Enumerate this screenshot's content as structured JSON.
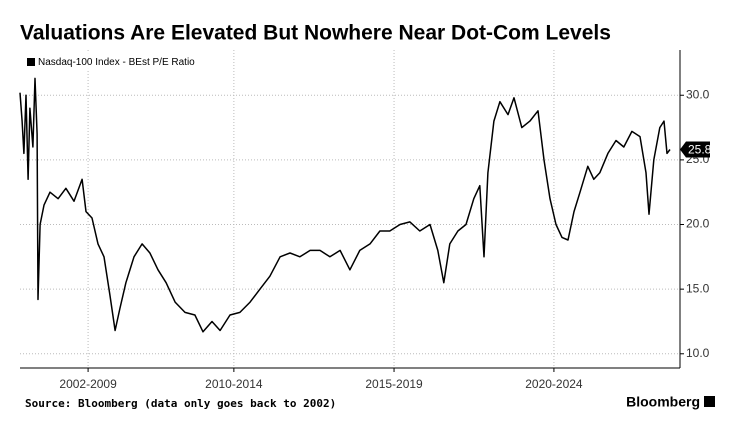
{
  "chart_data": {
    "type": "line",
    "title": "Valuations Are Elevated But Nowhere Near Dot-Com Levels",
    "source": "Source: Bloomberg (data only goes back to 2002)",
    "brand": "Bloomberg",
    "legend": "top-left",
    "grid": true,
    "xlim": [
      2004.0,
      2025.67
    ],
    "ylim": [
      8.9,
      33.5
    ],
    "xticks": [
      {
        "value": 2006.27,
        "label": "2002-2009"
      },
      {
        "value": 2011.13,
        "label": "2010-2014"
      },
      {
        "value": 2016.47,
        "label": "2015-2019"
      },
      {
        "value": 2021.8,
        "label": "2020-2024"
      }
    ],
    "yticks": [
      {
        "value": 10,
        "label": "10.0"
      },
      {
        "value": 15,
        "label": "15.0"
      },
      {
        "value": 20,
        "label": "20.0"
      },
      {
        "value": 25,
        "label": "25.0"
      },
      {
        "value": 30,
        "label": "30.0"
      }
    ],
    "x": [
      2004.0,
      2004.07,
      2004.13,
      2004.2,
      2004.27,
      2004.33,
      2004.43,
      2004.5,
      2004.57,
      2004.6,
      2004.67,
      2004.8,
      2005.0,
      2005.27,
      2005.53,
      2005.8,
      2006.07,
      2006.2,
      2006.4,
      2006.6,
      2006.8,
      2007.0,
      2007.17,
      2007.33,
      2007.53,
      2007.8,
      2008.07,
      2008.33,
      2008.6,
      2008.87,
      2009.17,
      2009.5,
      2009.83,
      2010.1,
      2010.4,
      2010.67,
      2011.0,
      2011.33,
      2011.67,
      2012.0,
      2012.33,
      2012.67,
      2013.0,
      2013.33,
      2013.67,
      2014.0,
      2014.33,
      2014.67,
      2015.0,
      2015.33,
      2015.67,
      2016.0,
      2016.33,
      2016.67,
      2017.0,
      2017.33,
      2017.67,
      2017.93,
      2018.13,
      2018.33,
      2018.6,
      2018.87,
      2019.13,
      2019.33,
      2019.47,
      2019.6,
      2019.8,
      2020.0,
      2020.27,
      2020.47,
      2020.73,
      2021.0,
      2021.27,
      2021.47,
      2021.67,
      2021.87,
      2022.07,
      2022.27,
      2022.47,
      2022.67,
      2022.93,
      2023.13,
      2023.33,
      2023.6,
      2023.87,
      2024.13,
      2024.4,
      2024.67,
      2024.87,
      2024.97,
      2025.13,
      2025.33,
      2025.47,
      2025.57,
      2025.67
    ],
    "series": [
      {
        "name": "Nasdaq-100 Index - BEst P/E Ratio",
        "color": "#000000",
        "values": [
          30.2,
          28,
          25.5,
          30,
          23.5,
          29,
          26,
          31.3,
          27,
          14.2,
          20,
          21.5,
          22.5,
          22,
          22.8,
          21.8,
          23.5,
          21,
          20.5,
          18.5,
          17.5,
          14.5,
          11.8,
          13.5,
          15.5,
          17.5,
          18.5,
          17.8,
          16.5,
          15.5,
          14,
          13.2,
          13,
          11.7,
          12.5,
          11.8,
          13,
          13.2,
          14,
          15,
          16,
          17.5,
          17.8,
          17.5,
          18,
          18,
          17.5,
          18,
          16.5,
          18,
          18.5,
          19.5,
          19.5,
          20,
          20.2,
          19.5,
          20,
          18,
          15.5,
          18.5,
          19.5,
          20,
          22,
          23,
          17.5,
          24,
          28,
          29.5,
          28.5,
          29.8,
          27.5,
          28,
          28.8,
          25,
          22,
          20,
          19,
          18.8,
          21,
          22.5,
          24.5,
          23.5,
          24,
          25.5,
          26.5,
          26,
          27.2,
          26.8,
          24,
          20.8,
          25,
          27.5,
          28,
          25.5,
          25.8
        ]
      }
    ]
  }
}
